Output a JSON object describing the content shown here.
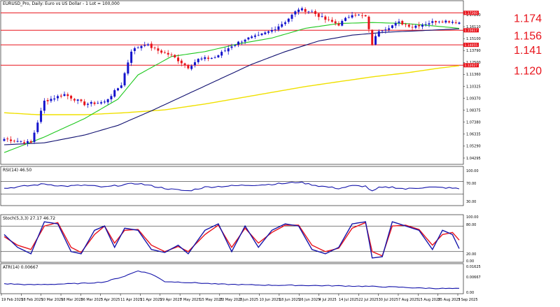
{
  "window": {
    "main_title": "EURUSD_Pro, Daily: Euro vs US Dollar - 1 Lot = 100,000",
    "rsi_title": "RSI(14) 46.50",
    "stoch_title": "Stoch(5,3,3) 27.17 46.72",
    "atr_title": "ATR(14) 0.00667"
  },
  "colors": {
    "bull": "#1414cc",
    "bear": "#e8141c",
    "ma_fast": "#1ec81e",
    "ma_mid": "#101070",
    "ma_slow": "#f0e000",
    "level": "#e8141c",
    "indicator": "#1414aa",
    "signal": "#e8141c"
  },
  "chart_data": [
    {
      "type": "candlestick",
      "name": "price",
      "ylim": [
        1.02,
        1.18
      ],
      "y_ticks": [
        "1.17260",
        "1.16110",
        "1.15100",
        "1.13790",
        "1.12500",
        "1.11360",
        "1.10325",
        "1.09370",
        "1.08375",
        "1.07380",
        "1.06335",
        "1.05290",
        "1.04295"
      ],
      "levels": [
        {
          "label": "1.174",
          "value": 1.174,
          "tag": "1.17260"
        },
        {
          "label": "1.156",
          "value": 1.156,
          "tag": "1.15617"
        },
        {
          "label": "1.141",
          "value": 1.141,
          "tag": "1.14055"
        },
        {
          "label": "1.120",
          "value": 1.12,
          "tag": "1.12027"
        }
      ],
      "x_labels": [
        "19 Feb 2025",
        "28 Feb 2025",
        "10 Mar 2025",
        "18 Mar 2025",
        "26 Mar 2025",
        "3 Apr 2025",
        "11 Apr 2025",
        "21 Apr 2025",
        "29 Apr 2025",
        "7 May 2025",
        "15 May 2025",
        "23 May 2025",
        "2 Jun 2025",
        "10 Jun 2025",
        "18 Jun 2025",
        "26 Jun 2025",
        "4 Jul 2025",
        "14 Jul 2025",
        "22 Jul 2025",
        "30 Jul 2025",
        "7 Aug 2025",
        "15 Aug 2025",
        "25 Aug 2025",
        "3 Sep 2025"
      ],
      "close_anchors": [
        [
          0,
          1.044
        ],
        [
          8,
          1.04
        ],
        [
          12,
          1.083
        ],
        [
          18,
          1.09
        ],
        [
          24,
          1.08
        ],
        [
          30,
          1.082
        ],
        [
          35,
          1.1
        ],
        [
          38,
          1.135
        ],
        [
          42,
          1.142
        ],
        [
          46,
          1.135
        ],
        [
          50,
          1.13
        ],
        [
          55,
          1.118
        ],
        [
          58,
          1.126
        ],
        [
          63,
          1.128
        ],
        [
          68,
          1.14
        ],
        [
          72,
          1.147
        ],
        [
          76,
          1.15
        ],
        [
          80,
          1.156
        ],
        [
          84,
          1.165
        ],
        [
          88,
          1.178
        ],
        [
          92,
          1.175
        ],
        [
          96,
          1.167
        ],
        [
          100,
          1.162
        ],
        [
          104,
          1.173
        ],
        [
          108,
          1.17
        ],
        [
          110,
          1.142
        ],
        [
          112,
          1.156
        ],
        [
          114,
          1.158
        ],
        [
          118,
          1.164
        ],
        [
          122,
          1.16
        ],
        [
          126,
          1.163
        ],
        [
          130,
          1.166
        ],
        [
          134,
          1.165
        ],
        [
          136,
          1.164
        ]
      ],
      "ma_fast_anchors": [
        [
          0,
          1.03
        ],
        [
          12,
          1.046
        ],
        [
          24,
          1.065
        ],
        [
          34,
          1.085
        ],
        [
          40,
          1.11
        ],
        [
          50,
          1.129
        ],
        [
          60,
          1.134
        ],
        [
          70,
          1.142
        ],
        [
          80,
          1.148
        ],
        [
          90,
          1.158
        ],
        [
          100,
          1.163
        ],
        [
          110,
          1.164
        ],
        [
          120,
          1.163
        ],
        [
          130,
          1.16
        ],
        [
          136,
          1.158
        ]
      ],
      "ma_mid_anchors": [
        [
          0,
          1.038
        ],
        [
          12,
          1.04
        ],
        [
          24,
          1.048
        ],
        [
          34,
          1.058
        ],
        [
          44,
          1.073
        ],
        [
          54,
          1.089
        ],
        [
          64,
          1.105
        ],
        [
          74,
          1.121
        ],
        [
          84,
          1.134
        ],
        [
          94,
          1.145
        ],
        [
          104,
          1.151
        ],
        [
          114,
          1.154
        ],
        [
          124,
          1.1555
        ],
        [
          136,
          1.1575
        ]
      ],
      "ma_slow_anchors": [
        [
          0,
          1.071
        ],
        [
          10,
          1.069
        ],
        [
          24,
          1.069
        ],
        [
          36,
          1.071
        ],
        [
          48,
          1.074
        ],
        [
          60,
          1.08
        ],
        [
          70,
          1.086
        ],
        [
          80,
          1.092
        ],
        [
          90,
          1.098
        ],
        [
          100,
          1.103
        ],
        [
          110,
          1.108
        ],
        [
          120,
          1.112
        ],
        [
          130,
          1.117
        ],
        [
          136,
          1.1195
        ]
      ]
    },
    {
      "type": "line",
      "name": "rsi",
      "ylim": [
        0,
        100
      ],
      "y_ticks": [
        "100.00",
        "70.00",
        "30.00",
        "0.00"
      ],
      "levels": [
        70,
        30
      ],
      "anchors": [
        [
          0,
          48
        ],
        [
          6,
          55
        ],
        [
          12,
          62
        ],
        [
          18,
          55
        ],
        [
          24,
          58
        ],
        [
          30,
          52
        ],
        [
          36,
          60
        ],
        [
          40,
          64
        ],
        [
          46,
          52
        ],
        [
          50,
          45
        ],
        [
          55,
          40
        ],
        [
          60,
          52
        ],
        [
          66,
          55
        ],
        [
          72,
          58
        ],
        [
          78,
          60
        ],
        [
          84,
          64
        ],
        [
          88,
          68
        ],
        [
          94,
          56
        ],
        [
          100,
          48
        ],
        [
          104,
          56
        ],
        [
          108,
          55
        ],
        [
          110,
          38
        ],
        [
          112,
          50
        ],
        [
          116,
          52
        ],
        [
          120,
          46
        ],
        [
          126,
          52
        ],
        [
          132,
          50
        ],
        [
          136,
          47
        ]
      ]
    },
    {
      "type": "line",
      "name": "stochastic",
      "ylim": [
        0,
        100
      ],
      "y_ticks": [
        "100.00",
        "80.00",
        "20.00",
        "0.00"
      ],
      "levels": [
        80,
        20
      ],
      "main_anchors": [
        [
          0,
          60
        ],
        [
          4,
          30
        ],
        [
          8,
          15
        ],
        [
          12,
          90
        ],
        [
          16,
          85
        ],
        [
          20,
          20
        ],
        [
          23,
          15
        ],
        [
          27,
          70
        ],
        [
          30,
          80
        ],
        [
          33,
          30
        ],
        [
          36,
          75
        ],
        [
          40,
          70
        ],
        [
          44,
          25
        ],
        [
          48,
          18
        ],
        [
          52,
          35
        ],
        [
          55,
          15
        ],
        [
          60,
          70
        ],
        [
          64,
          85
        ],
        [
          68,
          20
        ],
        [
          72,
          80
        ],
        [
          76,
          30
        ],
        [
          80,
          70
        ],
        [
          84,
          85
        ],
        [
          88,
          80
        ],
        [
          92,
          25
        ],
        [
          96,
          15
        ],
        [
          100,
          30
        ],
        [
          104,
          85
        ],
        [
          108,
          90
        ],
        [
          110,
          5
        ],
        [
          113,
          8
        ],
        [
          116,
          90
        ],
        [
          120,
          80
        ],
        [
          124,
          70
        ],
        [
          128,
          25
        ],
        [
          131,
          70
        ],
        [
          134,
          60
        ],
        [
          136,
          27
        ]
      ],
      "signal_anchors": [
        [
          0,
          55
        ],
        [
          4,
          35
        ],
        [
          8,
          25
        ],
        [
          12,
          80
        ],
        [
          16,
          88
        ],
        [
          20,
          30
        ],
        [
          23,
          18
        ],
        [
          27,
          60
        ],
        [
          30,
          80
        ],
        [
          33,
          40
        ],
        [
          36,
          70
        ],
        [
          40,
          72
        ],
        [
          44,
          35
        ],
        [
          48,
          20
        ],
        [
          52,
          32
        ],
        [
          55,
          20
        ],
        [
          60,
          60
        ],
        [
          64,
          82
        ],
        [
          68,
          30
        ],
        [
          72,
          75
        ],
        [
          76,
          40
        ],
        [
          80,
          65
        ],
        [
          84,
          82
        ],
        [
          88,
          82
        ],
        [
          92,
          35
        ],
        [
          96,
          20
        ],
        [
          100,
          28
        ],
        [
          104,
          75
        ],
        [
          108,
          88
        ],
        [
          110,
          20
        ],
        [
          113,
          10
        ],
        [
          116,
          80
        ],
        [
          120,
          82
        ],
        [
          124,
          72
        ],
        [
          128,
          35
        ],
        [
          131,
          60
        ],
        [
          134,
          65
        ],
        [
          136,
          47
        ]
      ]
    },
    {
      "type": "line",
      "name": "atr",
      "ylim": [
        0.005,
        0.017
      ],
      "y_ticks": [
        "0.01625",
        "0.00667",
        "0.00"
      ],
      "anchors": [
        [
          0,
          0.009
        ],
        [
          8,
          0.0085
        ],
        [
          16,
          0.0088
        ],
        [
          24,
          0.0092
        ],
        [
          30,
          0.0098
        ],
        [
          36,
          0.0125
        ],
        [
          40,
          0.015
        ],
        [
          44,
          0.0135
        ],
        [
          48,
          0.01
        ],
        [
          56,
          0.0095
        ],
        [
          64,
          0.0088
        ],
        [
          72,
          0.0085
        ],
        [
          80,
          0.0083
        ],
        [
          90,
          0.0082
        ],
        [
          100,
          0.008
        ],
        [
          108,
          0.0078
        ],
        [
          112,
          0.0076
        ],
        [
          118,
          0.0074
        ],
        [
          124,
          0.007
        ],
        [
          130,
          0.0068
        ],
        [
          136,
          0.0067
        ]
      ]
    }
  ]
}
